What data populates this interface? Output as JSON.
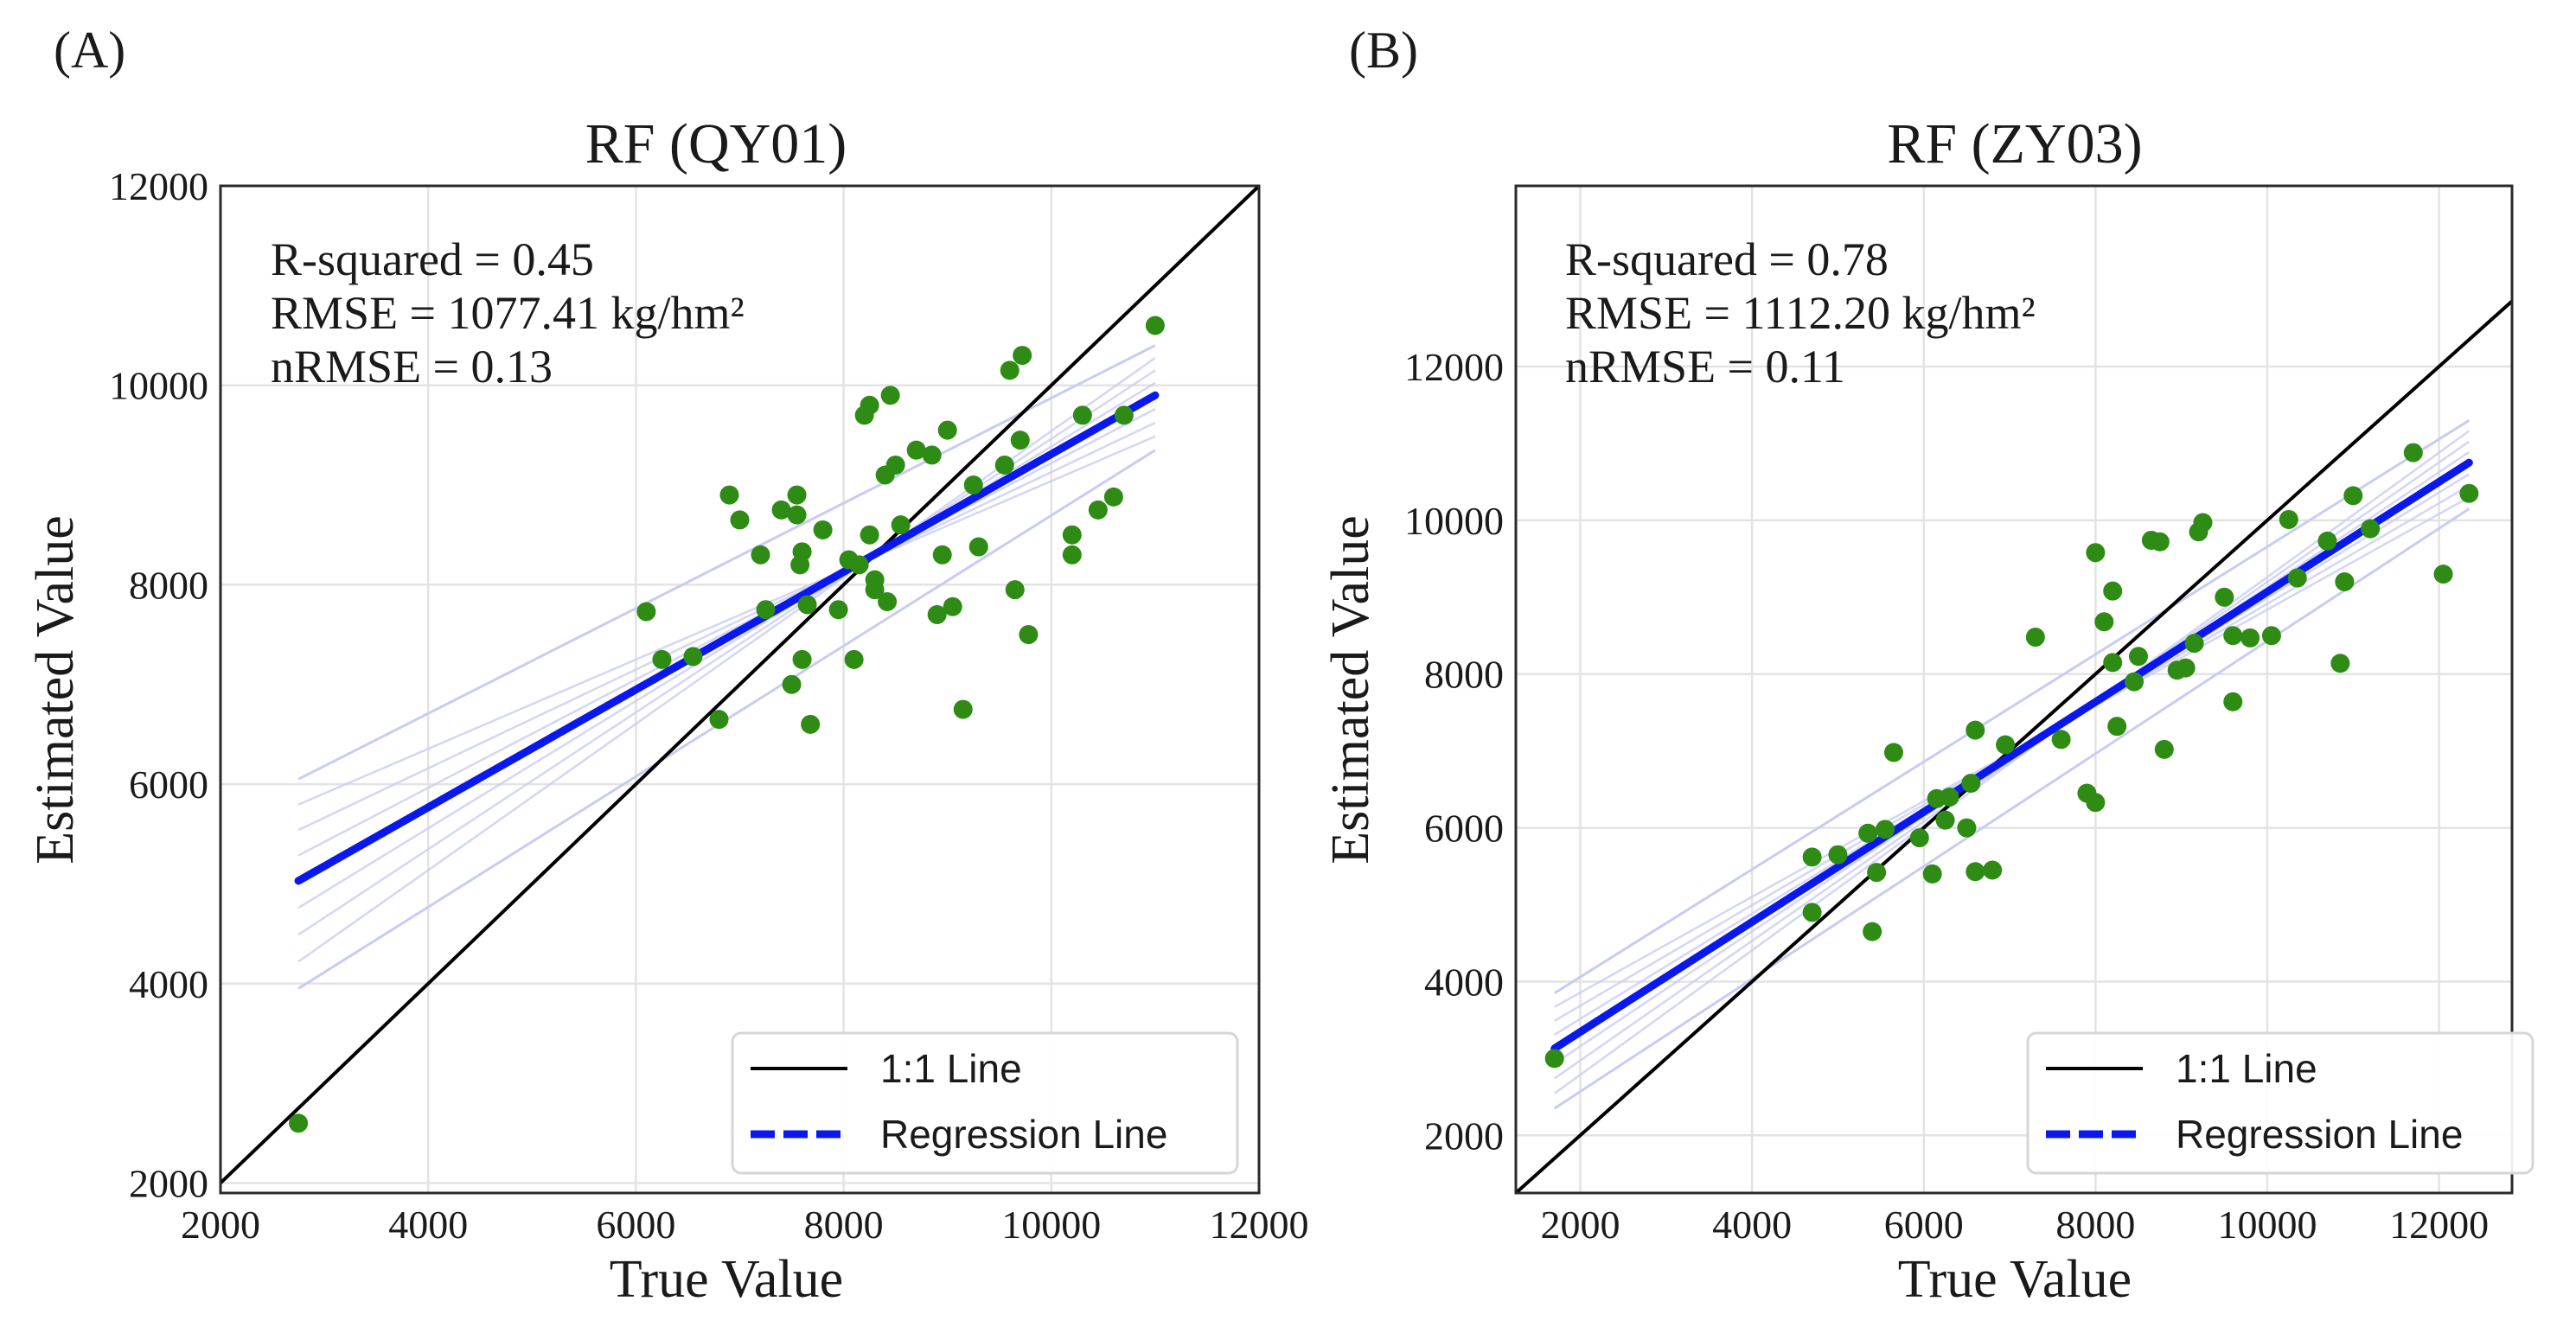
{
  "chart_data": [
    {
      "panel_label": "(A)",
      "type": "scatter",
      "title": "RF (QY01)",
      "xlabel": "True Value",
      "ylabel": "Estimated Value",
      "xlim": [
        2000,
        12000
      ],
      "ylim": [
        1900,
        12000
      ],
      "xticks": [
        2000,
        4000,
        6000,
        8000,
        10000,
        12000
      ],
      "yticks": [
        2000,
        4000,
        6000,
        8000,
        10000,
        12000
      ],
      "grid": true,
      "annotations": [
        "R-squared = 0.45",
        "RMSE = 1077.41 kg/hm²",
        "nRMSE = 0.13"
      ],
      "legend": {
        "position": "bottom-right",
        "items": [
          "1:1 Line",
          "Regression Line"
        ]
      },
      "regression": {
        "x0": 2750,
        "x1": 11000,
        "y0": 5030,
        "y1": 9900,
        "band_lower": [
          3950,
          9350
        ],
        "band_upper": [
          6050,
          10400
        ]
      },
      "colors": {
        "points": "#2e8b14",
        "regression": "#0a18f0",
        "identity": "#000000",
        "band": "#c8ccf4"
      },
      "points": [
        [
          2750,
          2600
        ],
        [
          6100,
          7730
        ],
        [
          6250,
          7250
        ],
        [
          6550,
          7280
        ],
        [
          6800,
          6650
        ],
        [
          6900,
          8900
        ],
        [
          7000,
          8650
        ],
        [
          7200,
          8300
        ],
        [
          7250,
          7750
        ],
        [
          7400,
          8750
        ],
        [
          7500,
          7000
        ],
        [
          7550,
          8700
        ],
        [
          7550,
          8900
        ],
        [
          7580,
          8200
        ],
        [
          7600,
          8330
        ],
        [
          7600,
          7250
        ],
        [
          7650,
          7800
        ],
        [
          7680,
          6600
        ],
        [
          7800,
          8550
        ],
        [
          7950,
          7750
        ],
        [
          8050,
          8250
        ],
        [
          8100,
          7250
        ],
        [
          8150,
          8200
        ],
        [
          8200,
          9700
        ],
        [
          8250,
          9800
        ],
        [
          8250,
          8500
        ],
        [
          8300,
          8050
        ],
        [
          8300,
          7950
        ],
        [
          8400,
          9100
        ],
        [
          8420,
          7830
        ],
        [
          8450,
          9900
        ],
        [
          8500,
          9200
        ],
        [
          8550,
          8600
        ],
        [
          8700,
          9350
        ],
        [
          8850,
          9300
        ],
        [
          8900,
          7700
        ],
        [
          8950,
          8300
        ],
        [
          9000,
          9550
        ],
        [
          9050,
          7780
        ],
        [
          9150,
          6750
        ],
        [
          9250,
          9000
        ],
        [
          9300,
          8380
        ],
        [
          9550,
          9200
        ],
        [
          9600,
          10150
        ],
        [
          9650,
          7950
        ],
        [
          9700,
          9450
        ],
        [
          9720,
          10300
        ],
        [
          9780,
          7500
        ],
        [
          10200,
          8500
        ],
        [
          10200,
          8300
        ],
        [
          10300,
          9700
        ],
        [
          10450,
          8750
        ],
        [
          10600,
          8880
        ],
        [
          10700,
          9700
        ],
        [
          11000,
          10600
        ]
      ]
    },
    {
      "panel_label": "(B)",
      "type": "scatter",
      "title": "RF (ZY03)",
      "xlabel": "True Value",
      "ylabel": "Estimated Value",
      "xlim": [
        1250,
        12850
      ],
      "ylim": [
        1250,
        14350
      ],
      "xticks": [
        2000,
        4000,
        6000,
        8000,
        10000,
        12000
      ],
      "yticks": [
        2000,
        4000,
        6000,
        8000,
        10000,
        12000
      ],
      "grid": true,
      "annotations": [
        "R-squared = 0.78",
        "RMSE = 1112.20 kg/hm²",
        "nRMSE = 0.11"
      ],
      "legend": {
        "position": "bottom-right",
        "items": [
          "1:1 Line",
          "Regression Line"
        ]
      },
      "regression": {
        "x0": 1700,
        "x1": 12350,
        "y0": 3130,
        "y1": 10750,
        "band_lower": [
          2350,
          10150
        ],
        "band_upper": [
          3850,
          11300
        ]
      },
      "colors": {
        "points": "#2e8b14",
        "regression": "#0a18f0",
        "identity": "#000000",
        "band": "#c8ccf4"
      },
      "points": [
        [
          1700,
          3000
        ],
        [
          4700,
          4900
        ],
        [
          4700,
          5620
        ],
        [
          5000,
          5650
        ],
        [
          5350,
          5930
        ],
        [
          5400,
          4650
        ],
        [
          5450,
          5420
        ],
        [
          5550,
          5980
        ],
        [
          5650,
          6980
        ],
        [
          5950,
          5870
        ],
        [
          6100,
          5400
        ],
        [
          6150,
          6380
        ],
        [
          6250,
          6100
        ],
        [
          6300,
          6400
        ],
        [
          6500,
          6000
        ],
        [
          6550,
          6580
        ],
        [
          6600,
          5430
        ],
        [
          6600,
          7270
        ],
        [
          6800,
          5450
        ],
        [
          6950,
          7080
        ],
        [
          7300,
          8480
        ],
        [
          7600,
          7150
        ],
        [
          7900,
          6450
        ],
        [
          8000,
          6330
        ],
        [
          8000,
          9580
        ],
        [
          8100,
          8680
        ],
        [
          8200,
          8150
        ],
        [
          8200,
          9080
        ],
        [
          8250,
          7320
        ],
        [
          8450,
          7900
        ],
        [
          8500,
          8230
        ],
        [
          8650,
          9740
        ],
        [
          8750,
          9720
        ],
        [
          8800,
          7020
        ],
        [
          8950,
          8050
        ],
        [
          9050,
          8080
        ],
        [
          9150,
          8400
        ],
        [
          9200,
          9850
        ],
        [
          9250,
          9970
        ],
        [
          9500,
          9000
        ],
        [
          9600,
          8500
        ],
        [
          9600,
          7640
        ],
        [
          9800,
          8470
        ],
        [
          10050,
          8500
        ],
        [
          10250,
          10010
        ],
        [
          10350,
          9250
        ],
        [
          10700,
          9730
        ],
        [
          10850,
          8140
        ],
        [
          10900,
          9200
        ],
        [
          11000,
          10320
        ],
        [
          11200,
          9890
        ],
        [
          11700,
          10880
        ],
        [
          12050,
          9300
        ],
        [
          12350,
          10350
        ]
      ]
    }
  ]
}
